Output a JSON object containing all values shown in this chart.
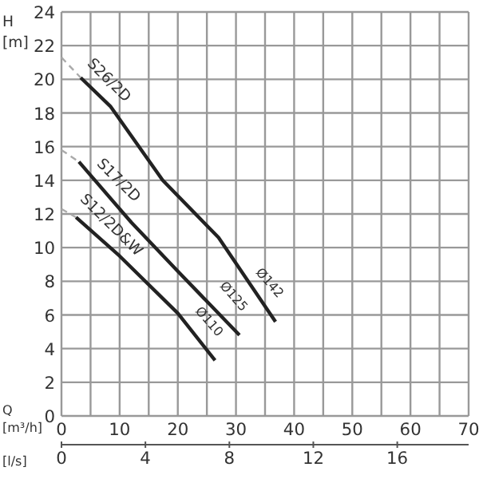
{
  "chart_data": {
    "type": "line",
    "xlabel": "Q\n[m³/h]",
    "x2label": "[l/s]",
    "ylabel": "H\n[m]",
    "xlim": [
      0,
      70
    ],
    "ylim": [
      0,
      24
    ],
    "xticks": [
      0,
      {
        "value": 5,
        "label": null
      },
      10,
      {
        "value": 15,
        "label": null
      },
      20,
      {
        "value": 25,
        "label": null
      },
      30,
      {
        "value": 35,
        "label": null
      },
      40,
      {
        "value": 45,
        "label": null
      },
      50,
      {
        "value": 55,
        "label": null
      },
      60,
      {
        "value": 65,
        "label": null
      },
      70
    ],
    "yticks": [
      0,
      2,
      4,
      6,
      8,
      10,
      12,
      14,
      16,
      18,
      20,
      22,
      24
    ],
    "x2lim": [
      0,
      19.4
    ],
    "x2ticks": [
      0,
      4,
      8,
      12,
      16
    ],
    "grid": true,
    "legend": false,
    "marker": "none",
    "series": [
      {
        "name": "S26/2D",
        "color": "#222222",
        "line_style": "solid",
        "x": [
          3.3,
          8.4,
          17.4,
          27,
          36.8
        ],
        "values": [
          20.1,
          18.4,
          14.0,
          10.6,
          5.6
        ]
      },
      {
        "color": "#aaaaaa",
        "line_style": "dashed",
        "x": [
          0,
          3.3
        ],
        "values": [
          21.3,
          20.1
        ]
      },
      {
        "name": "S17/2D",
        "color": "#222222",
        "line_style": "solid",
        "x": [
          3.0,
          12,
          20,
          30.6
        ],
        "values": [
          15.1,
          11.5,
          8.6,
          4.8
        ]
      },
      {
        "color": "#aaaaaa",
        "line_style": "dashed",
        "x": [
          0,
          3.0
        ],
        "values": [
          15.8,
          15.1
        ]
      },
      {
        "name": "S12/2D&W",
        "color": "#222222",
        "line_style": "solid",
        "x": [
          2.5,
          10,
          20,
          26.4
        ],
        "values": [
          11.8,
          9.5,
          6.1,
          3.3
        ]
      },
      {
        "color": "#aaaaaa",
        "line_style": "dashed",
        "x": [
          0,
          2.5
        ],
        "values": [
          12.3,
          11.8
        ]
      }
    ],
    "annotations": [
      "Ø142",
      "Ø125",
      "Ø110"
    ]
  }
}
